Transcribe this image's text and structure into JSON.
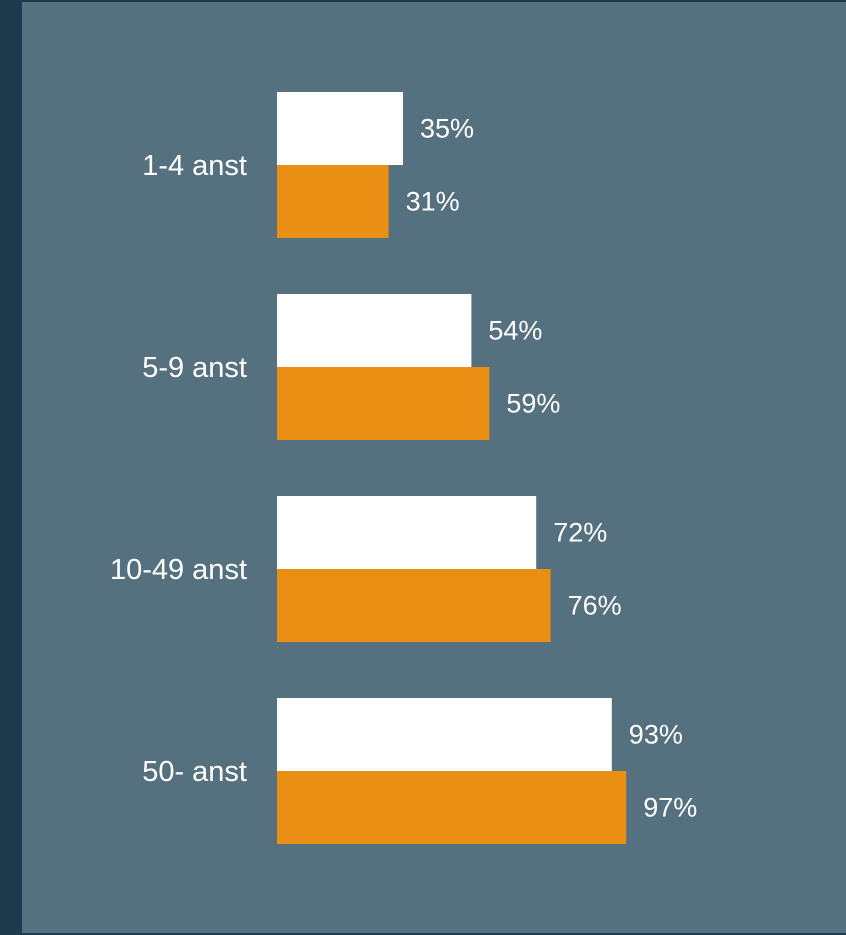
{
  "chart_data": {
    "type": "bar",
    "orientation": "horizontal",
    "categories": [
      "1-4 anst",
      "5-9 anst",
      "10-49 anst",
      "50- anst"
    ],
    "series": [
      {
        "values": [
          35,
          54,
          72,
          93
        ],
        "labels": [
          "35%",
          "54%",
          "72%",
          "93%"
        ],
        "color": "#ffffff"
      },
      {
        "values": [
          31,
          59,
          76,
          97
        ],
        "labels": [
          "31%",
          "59%",
          "76%",
          "97%"
        ],
        "color": "#e88f14"
      }
    ],
    "xlim": [
      0,
      100
    ],
    "grid": false,
    "title": "",
    "xlabel": "",
    "ylabel": ""
  },
  "colors": {
    "outer_background": "#1e3a4c",
    "panel_background": "#55707f"
  }
}
